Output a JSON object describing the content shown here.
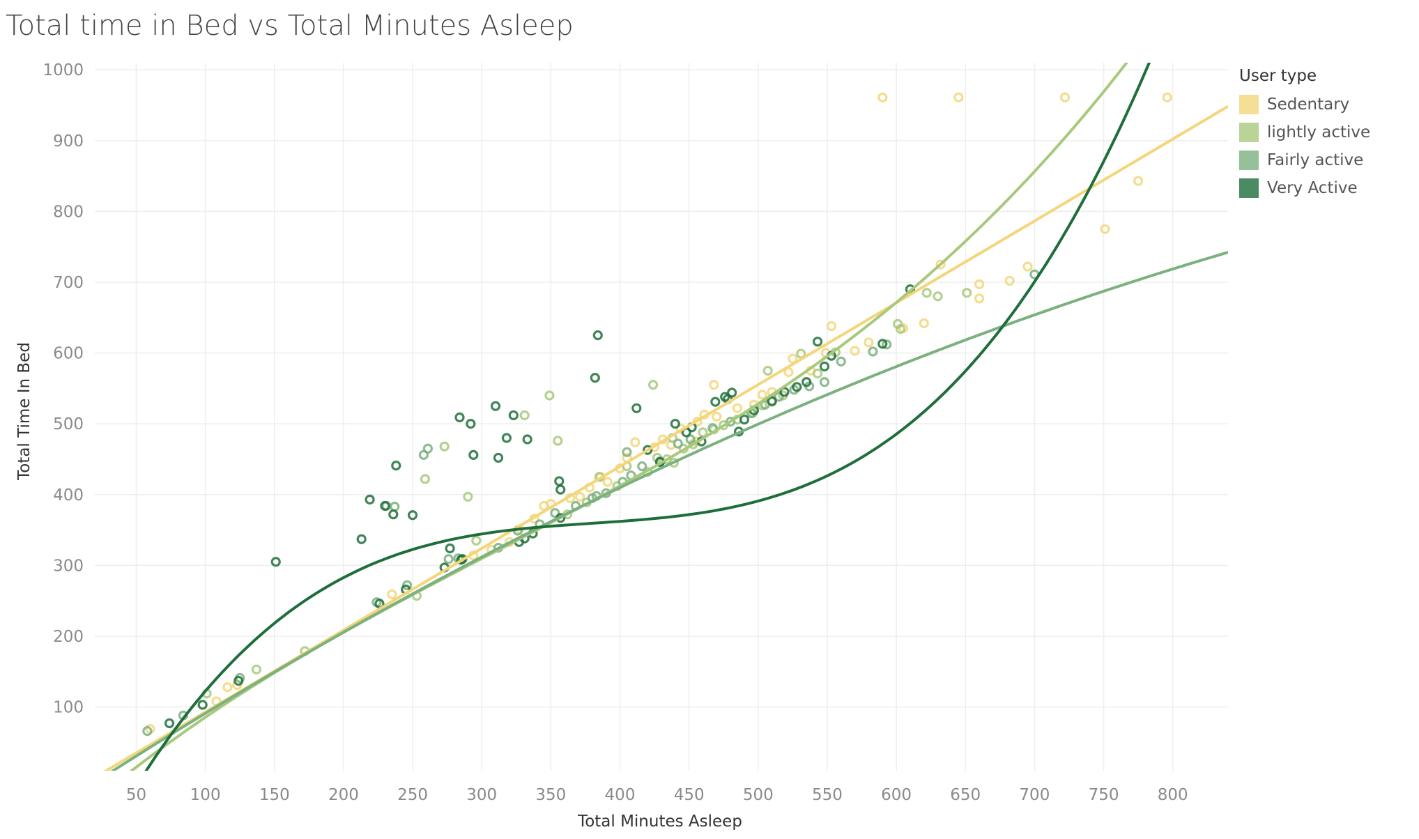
{
  "chart_data": {
    "type": "scatter",
    "title": "Total time in Bed vs Total Minutes Asleep",
    "xlabel": "Total Minutes Asleep",
    "ylabel": "Total Time In Bed",
    "xlim": [
      20,
      840
    ],
    "ylim": [
      10,
      1010
    ],
    "xticks": [
      50,
      100,
      150,
      200,
      250,
      300,
      350,
      400,
      450,
      500,
      550,
      600,
      650,
      700,
      750,
      800
    ],
    "yticks": [
      100,
      200,
      300,
      400,
      500,
      600,
      700,
      800,
      900,
      1000
    ],
    "grid": true,
    "legend": {
      "title": "User type",
      "position": "right"
    },
    "series": [
      {
        "name": "Sedentary",
        "color": "#f3d67a",
        "trend": [
          -22.7,
          1.156,
          0,
          0
        ],
        "points": [
          [
            590,
            961
          ],
          [
            645,
            961
          ],
          [
            722,
            961
          ],
          [
            796,
            961
          ],
          [
            775,
            843
          ],
          [
            751,
            775
          ],
          [
            695,
            722
          ],
          [
            682,
            702
          ],
          [
            660,
            697
          ],
          [
            660,
            677
          ],
          [
            632,
            725
          ],
          [
            620,
            642
          ],
          [
            605,
            635
          ],
          [
            580,
            615
          ],
          [
            570,
            603
          ],
          [
            553,
            638
          ],
          [
            549,
            600
          ],
          [
            538,
            575
          ],
          [
            525,
            592
          ],
          [
            522,
            573
          ],
          [
            510,
            545
          ],
          [
            503,
            541
          ],
          [
            497,
            527
          ],
          [
            485,
            522
          ],
          [
            468,
            555
          ],
          [
            470,
            510
          ],
          [
            461,
            513
          ],
          [
            456,
            503
          ],
          [
            455,
            475
          ],
          [
            444,
            493
          ],
          [
            437,
            470
          ],
          [
            431,
            478
          ],
          [
            425,
            467
          ],
          [
            411,
            474
          ],
          [
            405,
            452
          ],
          [
            400,
            437
          ],
          [
            391,
            418
          ],
          [
            386,
            425
          ],
          [
            378,
            410
          ],
          [
            371,
            397
          ],
          [
            364,
            395
          ],
          [
            350,
            387
          ],
          [
            345,
            384
          ],
          [
            338,
            366
          ],
          [
            327,
            351
          ],
          [
            320,
            333
          ],
          [
            307,
            322
          ],
          [
            294,
            314
          ],
          [
            235,
            259
          ],
          [
            116,
            128
          ],
          [
            108,
            108
          ],
          [
            60,
            69
          ],
          [
            123,
            131
          ]
        ]
      },
      {
        "name": "lightly active",
        "color": "#a8c97c",
        "trend": [
          -64.8,
          1.701,
          -0.00223,
          2.4e-06
        ],
        "points": [
          [
            349,
            540
          ],
          [
            331,
            512
          ],
          [
            355,
            476
          ],
          [
            273,
            468
          ],
          [
            259,
            422
          ],
          [
            290,
            397
          ],
          [
            296,
            335
          ],
          [
            253,
            257
          ],
          [
            137,
            153
          ],
          [
            172,
            179
          ],
          [
            101,
            119
          ],
          [
            385,
            425
          ],
          [
            398,
            412
          ],
          [
            405,
            440
          ],
          [
            420,
            432
          ],
          [
            427,
            452
          ],
          [
            434,
            450
          ],
          [
            438,
            480
          ],
          [
            446,
            465
          ],
          [
            453,
            471
          ],
          [
            460,
            488
          ],
          [
            468,
            492
          ],
          [
            475,
            498
          ],
          [
            485,
            506
          ],
          [
            496,
            515
          ],
          [
            503,
            526
          ],
          [
            510,
            531
          ],
          [
            518,
            540
          ],
          [
            531,
            599
          ],
          [
            543,
            571
          ],
          [
            556,
            601
          ],
          [
            603,
            634
          ],
          [
            622,
            685
          ],
          [
            630,
            680
          ],
          [
            651,
            685
          ],
          [
            601,
            641
          ],
          [
            424,
            555
          ],
          [
            507,
            575
          ],
          [
            362,
            372
          ],
          [
            376,
            389
          ],
          [
            439,
            445
          ]
        ]
      },
      {
        "name": "Fairly active",
        "color": "#7bb07f",
        "trend": [
          -31.8,
          1.27,
          -0.000415,
          0
        ],
        "points": [
          [
            700,
            711
          ],
          [
            593,
            612
          ],
          [
            583,
            602
          ],
          [
            560,
            588
          ],
          [
            548,
            559
          ],
          [
            537,
            553
          ],
          [
            526,
            548
          ],
          [
            515,
            538
          ],
          [
            505,
            527
          ],
          [
            495,
            515
          ],
          [
            480,
            503
          ],
          [
            467,
            494
          ],
          [
            451,
            478
          ],
          [
            442,
            472
          ],
          [
            429,
            447
          ],
          [
            416,
            440
          ],
          [
            408,
            427
          ],
          [
            402,
            418
          ],
          [
            390,
            402
          ],
          [
            380,
            395
          ],
          [
            368,
            384
          ],
          [
            353,
            374
          ],
          [
            342,
            358
          ],
          [
            326,
            349
          ],
          [
            312,
            325
          ],
          [
            283,
            310
          ],
          [
            276,
            309
          ],
          [
            246,
            272
          ],
          [
            237,
            383
          ],
          [
            258,
            456
          ],
          [
            261,
            465
          ],
          [
            224,
            248
          ],
          [
            125,
            141
          ],
          [
            84,
            88
          ],
          [
            58,
            66
          ],
          [
            231,
            384
          ],
          [
            383,
            398
          ],
          [
            405,
            460
          ]
        ]
      },
      {
        "name": "Very Active",
        "color": "#1e6e3a",
        "trend": [
          -191.6,
          4.09,
          -0.01042,
          9.14e-06
        ],
        "points": [
          [
            151,
            305
          ],
          [
            213,
            337
          ],
          [
            219,
            393
          ],
          [
            230,
            384
          ],
          [
            236,
            372
          ],
          [
            238,
            441
          ],
          [
            250,
            371
          ],
          [
            277,
            324
          ],
          [
            285,
            308
          ],
          [
            286,
            309
          ],
          [
            292,
            500
          ],
          [
            294,
            456
          ],
          [
            284,
            509
          ],
          [
            310,
            525
          ],
          [
            312,
            452
          ],
          [
            318,
            480
          ],
          [
            323,
            512
          ],
          [
            333,
            478
          ],
          [
            331,
            338
          ],
          [
            327,
            333
          ],
          [
            337,
            345
          ],
          [
            356,
            419
          ],
          [
            357,
            407
          ],
          [
            357,
            367
          ],
          [
            382,
            565
          ],
          [
            384,
            625
          ],
          [
            412,
            522
          ],
          [
            420,
            463
          ],
          [
            429,
            446
          ],
          [
            440,
            500
          ],
          [
            448,
            488
          ],
          [
            452,
            495
          ],
          [
            459,
            475
          ],
          [
            469,
            531
          ],
          [
            476,
            538
          ],
          [
            478,
            535
          ],
          [
            481,
            544
          ],
          [
            486,
            489
          ],
          [
            490,
            506
          ],
          [
            497,
            519
          ],
          [
            510,
            532
          ],
          [
            519,
            545
          ],
          [
            528,
            552
          ],
          [
            535,
            559
          ],
          [
            543,
            616
          ],
          [
            548,
            581
          ],
          [
            553,
            596
          ],
          [
            590,
            613
          ],
          [
            610,
            690
          ],
          [
            245,
            266
          ],
          [
            226,
            246
          ],
          [
            124,
            137
          ],
          [
            98,
            103
          ],
          [
            74,
            77
          ],
          [
            273,
            297
          ]
        ]
      }
    ]
  }
}
